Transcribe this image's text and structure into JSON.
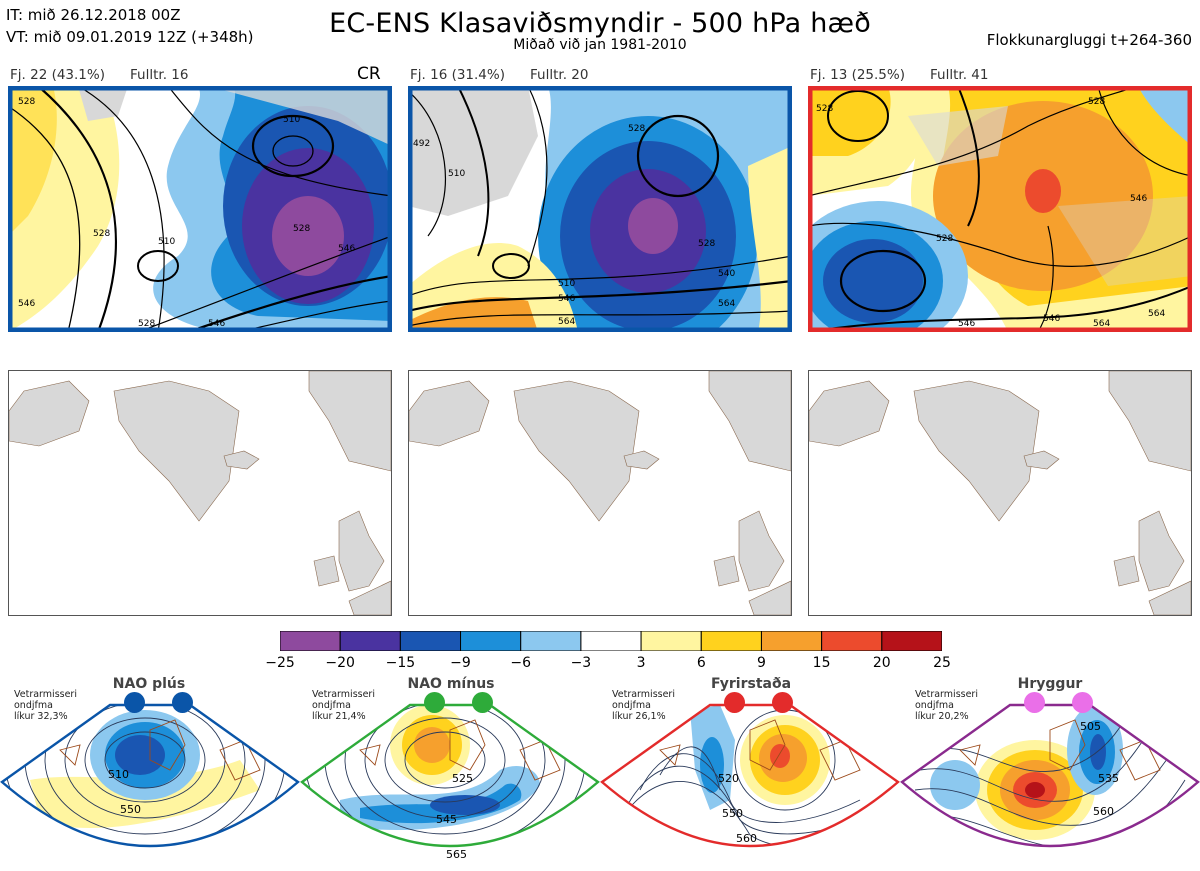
{
  "header": {
    "line1": "IT: mið 26.12.2018 00Z",
    "line2": "VT: mið 09.01.2019 12Z  (+348h)",
    "title": "EC-ENS Klasaviðsmyndir - 500 hPa hæð",
    "subtitle": "Miðað við jan 1981-2010",
    "window": "Flokkunargluggi t+264-360"
  },
  "clusters": [
    {
      "count": "Fj. 22 (43.1%)",
      "rep": "Fulltr. 16",
      "tag": "CR",
      "border_color": "#0a55a8",
      "contour_labels": [
        "528",
        "510",
        "528",
        "546",
        "510",
        "528",
        "546",
        "546",
        "528"
      ]
    },
    {
      "count": "Fj. 16 (31.4%)",
      "rep": "Fulltr. 20",
      "tag": "",
      "border_color": "#0a55a8",
      "contour_labels": [
        "492",
        "510",
        "528",
        "510",
        "528",
        "540",
        "546",
        "564",
        "564"
      ]
    },
    {
      "count": "Fj. 13 (25.5%)",
      "rep": "Fulltr. 41",
      "tag": "",
      "border_color": "#e32b2b",
      "contour_labels": [
        "528",
        "528",
        "546",
        "546",
        "528",
        "546",
        "564",
        "564"
      ]
    }
  ],
  "colorbar": {
    "ticks": [
      "−25",
      "−20",
      "−15",
      "−9",
      "−6",
      "−3",
      "3",
      "6",
      "9",
      "15",
      "20",
      "25"
    ],
    "colors": [
      "#8e4a9e",
      "#4a33a0",
      "#1a56b2",
      "#1d8fd9",
      "#8cc8ef",
      "#ffffff",
      "#fff5a0",
      "#ffd21e",
      "#f6a02d",
      "#ec4b2d",
      "#b51219"
    ]
  },
  "regimes": [
    {
      "title": "NAO plús",
      "note": [
        "Vetrarmisseri",
        "ondjfma",
        "líkur 32,3%"
      ],
      "frame_color": "#0a55a8",
      "dot_color": "#0a55a8",
      "contour_labels": [
        "510",
        "550"
      ]
    },
    {
      "title": "NAO mínus",
      "note": [
        "Vetrarmisseri",
        "ondjfma",
        "líkur 21,4%"
      ],
      "frame_color": "#2eab3a",
      "dot_color": "#2eab3a",
      "contour_labels": [
        "525",
        "545",
        "565"
      ]
    },
    {
      "title": "Fyrirstaða",
      "note": [
        "Vetrarmisseri",
        "ondjfma",
        "líkur 26,1%"
      ],
      "frame_color": "#e32b2b",
      "dot_color": "#e32b2b",
      "contour_labels": [
        "520",
        "550",
        "560"
      ]
    },
    {
      "title": "Hryggur",
      "note": [
        "Vetrarmisseri",
        "ondjfma",
        "líkur 20,2%"
      ],
      "frame_color": "#8a2a8e",
      "dot_color": "#ea6fe8",
      "contour_labels": [
        "505",
        "535",
        "560"
      ]
    }
  ]
}
